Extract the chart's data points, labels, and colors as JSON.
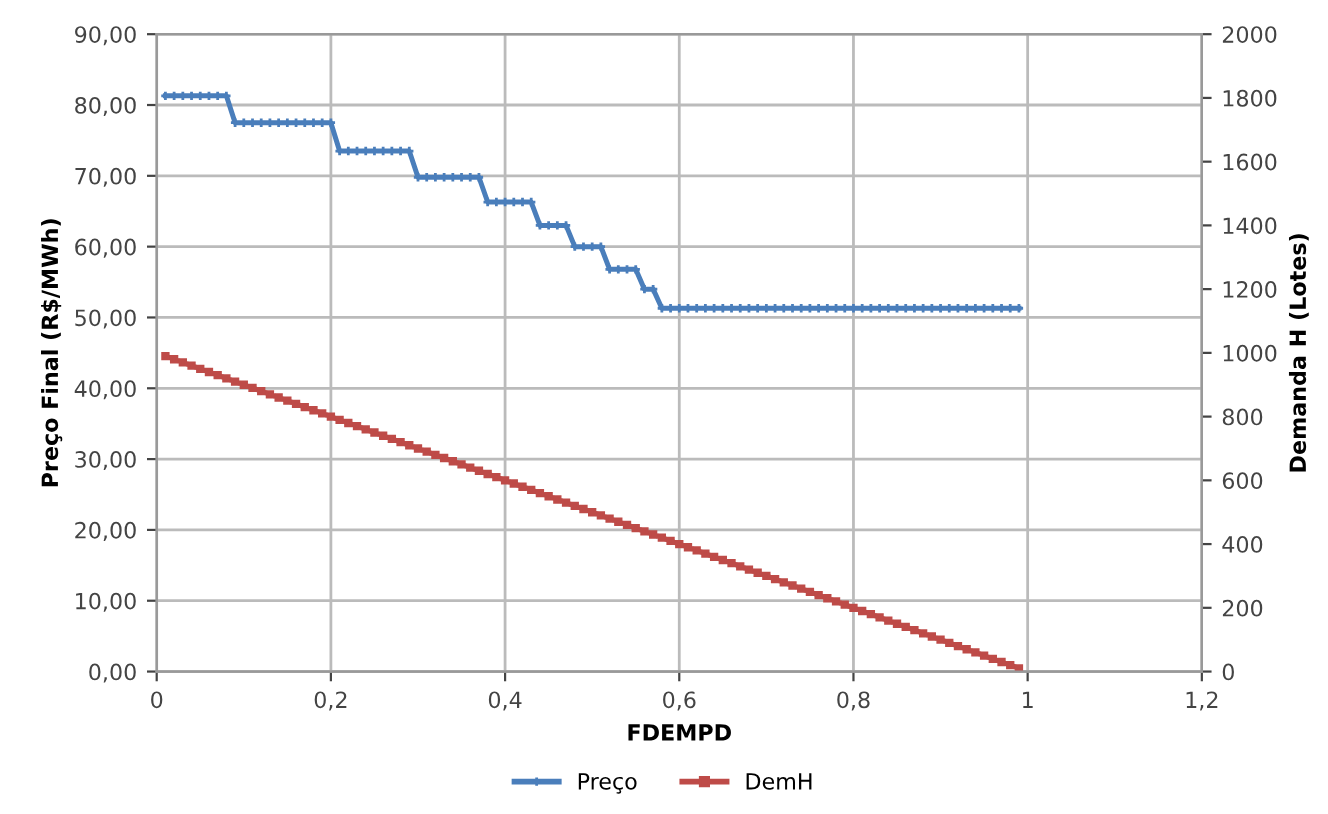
{
  "chart_data": {
    "type": "line",
    "xlabel": "FDEMPD",
    "ylabel": "Preço Final (R$/MWh)",
    "y2label": "Demanda H (Lotes)",
    "x": [
      0.01,
      0.02,
      0.03,
      0.04,
      0.05,
      0.06,
      0.07,
      0.08,
      0.09,
      0.1,
      0.11,
      0.12,
      0.13,
      0.14,
      0.15,
      0.16,
      0.17,
      0.18,
      0.19,
      0.2,
      0.21,
      0.22,
      0.23,
      0.24,
      0.25,
      0.26,
      0.27,
      0.28,
      0.29,
      0.3,
      0.31,
      0.32,
      0.33,
      0.34,
      0.35,
      0.36,
      0.37,
      0.38,
      0.39,
      0.4,
      0.41,
      0.42,
      0.43,
      0.44,
      0.45,
      0.46,
      0.47,
      0.48,
      0.49,
      0.5,
      0.51,
      0.52,
      0.53,
      0.54,
      0.55,
      0.56,
      0.57,
      0.58,
      0.59,
      0.6,
      0.61,
      0.62,
      0.63,
      0.64,
      0.65,
      0.66,
      0.67,
      0.68,
      0.69,
      0.7,
      0.71,
      0.72,
      0.73,
      0.74,
      0.75,
      0.76,
      0.77,
      0.78,
      0.79,
      0.8,
      0.81,
      0.82,
      0.83,
      0.84,
      0.85,
      0.86,
      0.87,
      0.88,
      0.89,
      0.9,
      0.91,
      0.92,
      0.93,
      0.94,
      0.95,
      0.96,
      0.97,
      0.98,
      0.99
    ],
    "series": [
      {
        "name": "Preço",
        "color": "#4a7ebb",
        "marker": "cross",
        "values": [
          81.3,
          81.3,
          81.3,
          81.3,
          81.3,
          81.3,
          81.3,
          81.3,
          77.5,
          77.5,
          77.5,
          77.5,
          77.5,
          77.5,
          77.5,
          77.5,
          77.5,
          77.5,
          77.5,
          77.5,
          73.5,
          73.5,
          73.5,
          73.5,
          73.5,
          73.5,
          73.5,
          73.5,
          73.5,
          69.8,
          69.8,
          69.8,
          69.8,
          69.8,
          69.8,
          69.8,
          69.8,
          66.3,
          66.3,
          66.3,
          66.3,
          66.3,
          66.3,
          63.0,
          63.0,
          63.0,
          63.0,
          60.0,
          60.0,
          60.0,
          60.0,
          56.8,
          56.8,
          56.8,
          56.8,
          54.0,
          54.0,
          51.3,
          51.3,
          51.3,
          51.3,
          51.3,
          51.3,
          51.3,
          51.3,
          51.3,
          51.3,
          51.3,
          51.3,
          51.3,
          51.3,
          51.3,
          51.3,
          51.3,
          51.3,
          51.3,
          51.3,
          51.3,
          51.3,
          51.3,
          51.3,
          51.3,
          51.3,
          51.3,
          51.3,
          51.3,
          51.3,
          51.3,
          51.3,
          51.3,
          51.3,
          51.3,
          51.3,
          51.3,
          51.3,
          51.3,
          51.3,
          51.3,
          51.3
        ]
      },
      {
        "name": "DemH",
        "color": "#be4b48",
        "marker": "square",
        "axis": "y2",
        "values": [
          990,
          980,
          970,
          960,
          950,
          940,
          930,
          920,
          910,
          900,
          890,
          880,
          870,
          860,
          850,
          840,
          830,
          820,
          810,
          800,
          790,
          780,
          770,
          760,
          750,
          740,
          730,
          720,
          710,
          700,
          690,
          680,
          670,
          660,
          650,
          640,
          630,
          620,
          610,
          600,
          590,
          580,
          570,
          560,
          550,
          540,
          530,
          520,
          510,
          500,
          490,
          480,
          470,
          460,
          450,
          440,
          430,
          420,
          410,
          400,
          390,
          380,
          370,
          360,
          350,
          340,
          330,
          320,
          310,
          300,
          290,
          280,
          270,
          260,
          250,
          240,
          230,
          220,
          210,
          200,
          190,
          180,
          170,
          160,
          150,
          140,
          130,
          120,
          110,
          100,
          90,
          80,
          70,
          60,
          50,
          40,
          30,
          20,
          10
        ]
      }
    ],
    "xlim": [
      0,
      1.2
    ],
    "xticks": [
      0,
      {
        "value": 0.2,
        "label": "0,2"
      },
      {
        "value": 0.4,
        "label": "0,4"
      },
      {
        "value": 0.6,
        "label": "0,6"
      },
      {
        "value": 0.8,
        "label": "0,8"
      },
      1,
      {
        "value": 1.2,
        "label": "1,2"
      }
    ],
    "ylim": [
      0,
      90
    ],
    "yticks": [
      {
        "value": 0,
        "label": "0,00"
      },
      {
        "value": 10,
        "label": "10,00"
      },
      {
        "value": 20,
        "label": "20,00"
      },
      {
        "value": 30,
        "label": "30,00"
      },
      {
        "value": 40,
        "label": "40,00"
      },
      {
        "value": 50,
        "label": "50,00"
      },
      {
        "value": 60,
        "label": "60,00"
      },
      {
        "value": 70,
        "label": "70,00"
      },
      {
        "value": 80,
        "label": "80,00"
      },
      {
        "value": 90,
        "label": "90,00"
      }
    ],
    "y2lim": [
      0,
      2000
    ],
    "y2ticks": [
      0,
      200,
      400,
      600,
      800,
      1000,
      1200,
      1400,
      1600,
      1800,
      2000
    ],
    "grid": true,
    "legend": "bottom",
    "line_style": "solid"
  }
}
